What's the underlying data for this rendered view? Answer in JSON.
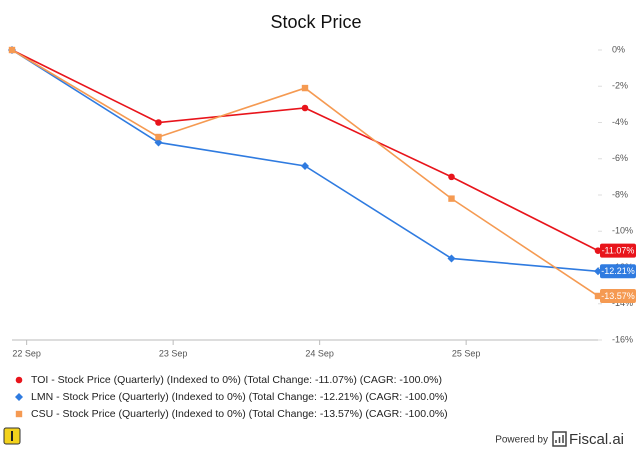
{
  "chart_data": {
    "type": "line",
    "title": "Stock Price",
    "x": [
      -0.1,
      0.9,
      1.9,
      2.9,
      3.9
    ],
    "xlim": [
      -0.1,
      3.9
    ],
    "xticks": [
      {
        "value": 0,
        "label": "22 Sep"
      },
      {
        "value": 1,
        "label": "23 Sep"
      },
      {
        "value": 2,
        "label": "24 Sep"
      },
      {
        "value": 3,
        "label": "25 Sep"
      }
    ],
    "ylim": [
      -16,
      0
    ],
    "yticks": [
      {
        "value": 0,
        "label": "0%"
      },
      {
        "value": -2,
        "label": "-2%"
      },
      {
        "value": -4,
        "label": "-4%"
      },
      {
        "value": -6,
        "label": "-6%"
      },
      {
        "value": -8,
        "label": "-8%"
      },
      {
        "value": -10,
        "label": "-10%"
      },
      {
        "value": -12,
        "label": "-12%"
      },
      {
        "value": -14,
        "label": "-14%"
      },
      {
        "value": -16,
        "label": "-16%"
      }
    ],
    "series": [
      {
        "name": "TOI - Stock Price (Quarterly) (Indexed to 0%) (Total Change: -11.07%) (CAGR: -100.0%)",
        "color": "#e8141b",
        "marker": "circle",
        "values": [
          0,
          -4.0,
          -3.2,
          -7.0,
          -11.07
        ],
        "value_labels": [
          null,
          null,
          null,
          null,
          "-11.07%"
        ]
      },
      {
        "name": "LMN - Stock Price (Quarterly) (Indexed to 0%) (Total Change: -12.21%) (CAGR: -100.0%)",
        "color": "#2f7be0",
        "marker": "diamond",
        "values": [
          0,
          -5.1,
          -6.4,
          -11.5,
          -12.21
        ],
        "value_labels": [
          null,
          null,
          null,
          null,
          "-12.21%"
        ]
      },
      {
        "name": "CSU - Stock Price (Quarterly) (Indexed to 0%) (Total Change: -13.57%) (CAGR: -100.0%)",
        "color": "#f59a52",
        "marker": "square",
        "values": [
          0,
          -4.8,
          -2.1,
          -8.2,
          -13.57
        ],
        "value_labels": [
          null,
          null,
          null,
          null,
          "-13.57%"
        ]
      }
    ]
  },
  "footer": {
    "powered": "Powered by",
    "brand": "Fiscal.ai"
  }
}
